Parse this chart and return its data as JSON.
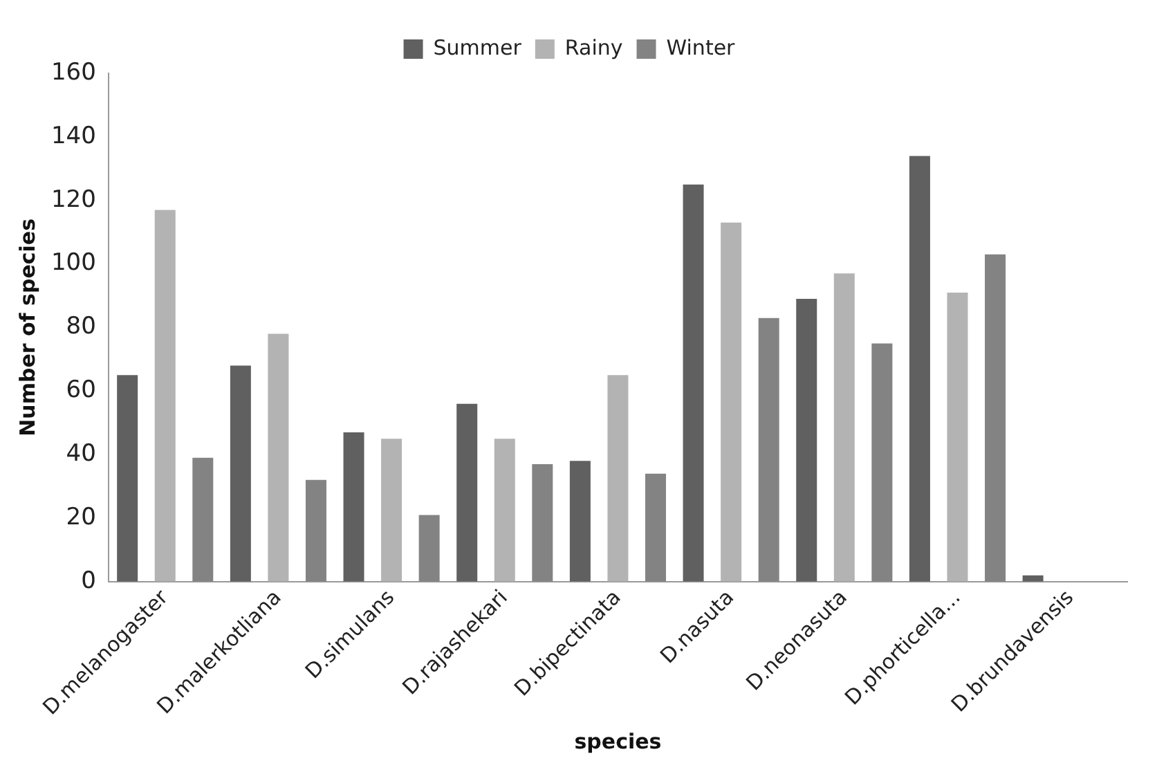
{
  "chart_data": {
    "type": "bar",
    "xlabel": "species",
    "ylabel": "Number of species",
    "categories": [
      "D.melanogaster",
      "D.malerkotliana",
      "D.simulans",
      "D.rajashekari",
      "D.bipectinata",
      "D.nasuta",
      "D.neonasuta",
      "D.phorticella...",
      "D.brundavensis"
    ],
    "series": [
      {
        "name": "Summer",
        "color": "#606060",
        "values": [
          65,
          68,
          47,
          56,
          38,
          125,
          89,
          134,
          2
        ]
      },
      {
        "name": "Rainy",
        "color": "#b3b3b3",
        "values": [
          117,
          78,
          45,
          45,
          65,
          113,
          97,
          91,
          0
        ]
      },
      {
        "name": "Winter",
        "color": "#838383",
        "values": [
          39,
          32,
          21,
          37,
          34,
          83,
          75,
          103,
          0
        ]
      }
    ],
    "ylim": [
      0,
      160
    ],
    "yticks": [
      0,
      20,
      40,
      60,
      80,
      100,
      120,
      140,
      160
    ],
    "grid": false,
    "legend": "top"
  }
}
